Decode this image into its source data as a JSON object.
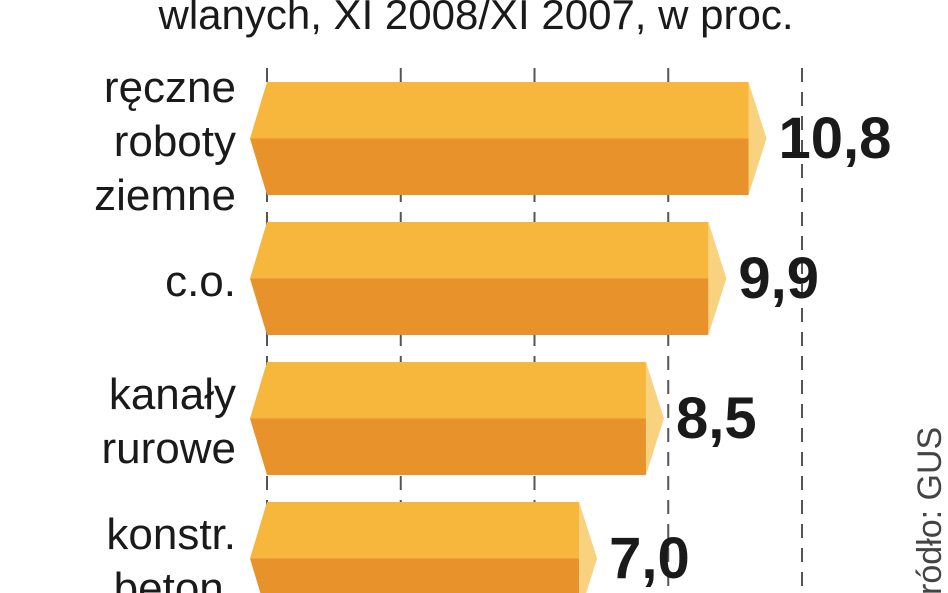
{
  "chart_data": {
    "type": "bar",
    "orientation": "horizontal",
    "title": "wlanych, XI 2008/XI 2007, w proc.",
    "categories": [
      [
        "ręczne",
        "roboty",
        "ziemne"
      ],
      [
        "c.o."
      ],
      [
        "kanały",
        "rurowe"
      ],
      [
        "konstr.",
        "beton."
      ]
    ],
    "values": [
      10.8,
      9.9,
      8.5,
      7.0
    ],
    "value_labels": [
      "10,8",
      "9,9",
      "8,5",
      "7,0"
    ],
    "colors": {
      "top": "#f6b73c",
      "bottom": "#e8922b",
      "cap": "#f8d27e"
    },
    "xlim": [
      0,
      12
    ],
    "grid_lines": [
      0,
      3,
      6,
      9,
      12
    ],
    "source": "źródło: GUS"
  }
}
